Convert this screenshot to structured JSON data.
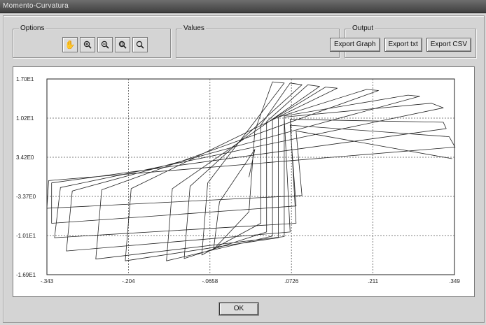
{
  "window": {
    "title": "Momento-Curvatura"
  },
  "options": {
    "label": "Options",
    "tools": [
      "pan-icon",
      "zoom-in-icon",
      "zoom-out-icon",
      "zoom-fit-icon",
      "zoom-reset-icon"
    ]
  },
  "values": {
    "label": "Values"
  },
  "output": {
    "label": "Output",
    "export_graph": "Export Graph",
    "export_txt": "Export txt",
    "export_csv": "Export CSV"
  },
  "ok_label": "OK",
  "colors": {
    "plot_line": "#222222",
    "grid": "#555555",
    "background": "#d4d4d4"
  },
  "chart_data": {
    "type": "line",
    "title": "",
    "xlabel": "",
    "ylabel": "",
    "grid": true,
    "xlim": [
      -0.343,
      0.349
    ],
    "ylim": [
      -16.9,
      17.0
    ],
    "x_ticks": [
      "-.343",
      "-.204",
      "-.0658",
      ".0726",
      ".211",
      ".349"
    ],
    "y_ticks": [
      "1.70E1",
      "1.02E1",
      "3.42E0",
      "-3.37E0",
      "-1.01E1",
      "-1.69E1"
    ],
    "series": [
      {
        "values": [
          [
            0.0,
            0.0
          ],
          [
            0.01,
            4.8
          ],
          [
            -0.05,
            -4.3
          ],
          [
            -0.06,
            -12.5
          ],
          [
            0.0,
            -6.0
          ],
          [
            0.01,
            8.0
          ],
          [
            0.04,
            16.5
          ],
          [
            0.06,
            16.3
          ],
          [
            -0.07,
            -1.0
          ],
          [
            -0.08,
            -13.5
          ],
          [
            0.02,
            -8.0
          ],
          [
            0.02,
            9.0
          ],
          [
            0.07,
            16.3
          ],
          [
            0.09,
            16.0
          ],
          [
            -0.1,
            -1.6
          ],
          [
            -0.11,
            -14.1
          ],
          [
            0.03,
            -9.5
          ],
          [
            0.03,
            9.6
          ],
          [
            0.1,
            16.0
          ],
          [
            0.12,
            15.7
          ],
          [
            -0.13,
            -2.0
          ],
          [
            -0.14,
            -14.5
          ],
          [
            0.04,
            -10.2
          ],
          [
            0.04,
            10.0
          ],
          [
            0.13,
            15.6
          ],
          [
            0.15,
            15.4
          ],
          [
            -0.2,
            -2.0
          ],
          [
            -0.21,
            -14.5
          ],
          [
            0.05,
            -10.5
          ],
          [
            0.05,
            10.4
          ],
          [
            0.2,
            15.2
          ],
          [
            0.22,
            15.0
          ],
          [
            -0.25,
            -2.2
          ],
          [
            -0.26,
            -14.2
          ],
          [
            0.06,
            -10.3
          ],
          [
            0.06,
            10.6
          ],
          [
            0.27,
            14.2
          ],
          [
            0.29,
            14.0
          ],
          [
            -0.3,
            -2.4
          ],
          [
            -0.31,
            -12.8
          ],
          [
            0.07,
            -9.5
          ],
          [
            0.06,
            10.4
          ],
          [
            0.31,
            12.8
          ],
          [
            0.33,
            12.0
          ],
          [
            -0.32,
            -1.8
          ],
          [
            -0.33,
            -10.5
          ],
          [
            0.08,
            -8.0
          ],
          [
            0.07,
            10.0
          ],
          [
            0.33,
            9.5
          ],
          [
            0.335,
            8.4
          ],
          [
            -0.335,
            -1.0
          ],
          [
            -0.335,
            -8.0
          ],
          [
            0.08,
            -5.0
          ],
          [
            0.07,
            9.0
          ],
          [
            0.34,
            7.0
          ],
          [
            0.35,
            5.2
          ],
          [
            -0.34,
            -0.6
          ],
          [
            -0.343,
            -5.4
          ],
          [
            0.09,
            -3.2
          ],
          [
            0.08,
            8.0
          ],
          [
            0.345,
            3.2
          ]
        ]
      }
    ]
  }
}
